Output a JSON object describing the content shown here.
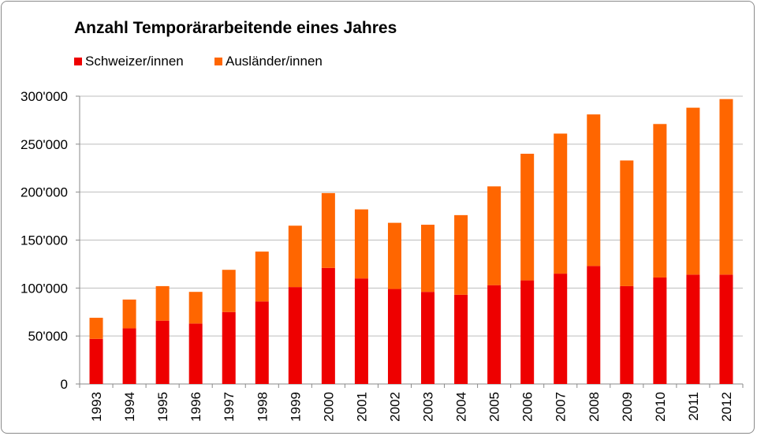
{
  "chart_data": {
    "type": "bar",
    "stacked": true,
    "title": "Anzahl Temporärarbeitende eines Jahres",
    "categories": [
      "1993",
      "1994",
      "1995",
      "1996",
      "1997",
      "1998",
      "1999",
      "2000",
      "2001",
      "2002",
      "2003",
      "2004",
      "2005",
      "2006",
      "2007",
      "2008",
      "2009",
      "2010",
      "2011",
      "2012"
    ],
    "series": [
      {
        "name": "Schweizer/innen",
        "color": "#ee0000",
        "values": [
          47000,
          58000,
          66000,
          63000,
          75000,
          86000,
          101000,
          121000,
          110000,
          99000,
          96000,
          93000,
          103000,
          108000,
          115000,
          123000,
          102000,
          111000,
          114000,
          114000
        ]
      },
      {
        "name": "Ausländer/innen",
        "color": "#ff6600",
        "values": [
          22000,
          30000,
          36000,
          33000,
          44000,
          52000,
          64000,
          78000,
          72000,
          69000,
          70000,
          83000,
          103000,
          132000,
          146000,
          158000,
          131000,
          160000,
          174000,
          183000
        ]
      }
    ],
    "ylim": [
      0,
      300000
    ],
    "yticks": [
      0,
      50000,
      100000,
      150000,
      200000,
      250000,
      300000
    ],
    "ytick_labels": [
      "0",
      "50'000",
      "100'000",
      "150'000",
      "200'000",
      "250'000",
      "300'000"
    ],
    "grid": true,
    "legend": "top-left"
  }
}
